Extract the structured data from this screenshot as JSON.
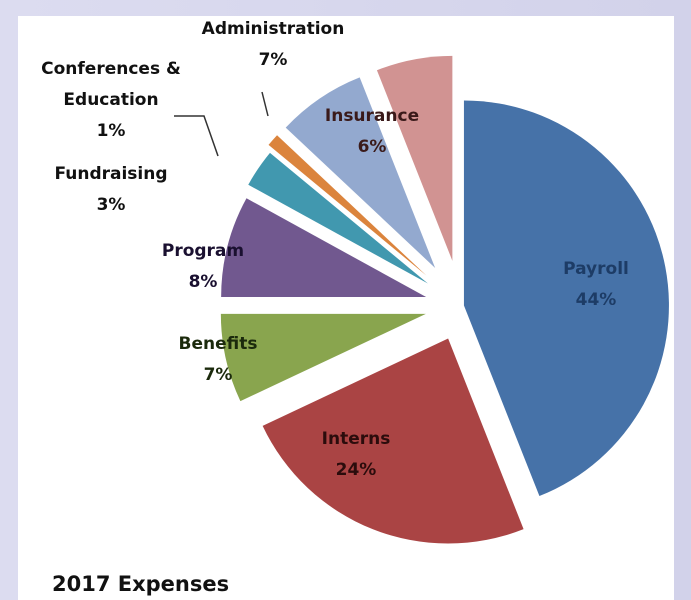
{
  "chart_data": {
    "type": "pie",
    "exploded": true,
    "title": "2017 Expenses",
    "slices": [
      {
        "name": "Payroll",
        "value": 44,
        "label": "44%",
        "color": "#4672a8"
      },
      {
        "name": "Interns",
        "value": 24,
        "label": "24%",
        "color": "#aa4444"
      },
      {
        "name": "Benefits",
        "value": 7,
        "label": "7%",
        "color": "#89a54e"
      },
      {
        "name": "Program",
        "value": 8,
        "label": "8%",
        "color": "#71588f"
      },
      {
        "name": "Fundraising",
        "value": 3,
        "label": "3%",
        "color": "#4198af"
      },
      {
        "name": "Conferences & Education",
        "value": 1,
        "label": "1%",
        "color": "#db843d"
      },
      {
        "name": "Administration",
        "value": 7,
        "label": "7%",
        "color": "#93a9cf"
      },
      {
        "name": "Insurance",
        "value": 6,
        "label": "6%",
        "color": "#d19392"
      }
    ]
  }
}
